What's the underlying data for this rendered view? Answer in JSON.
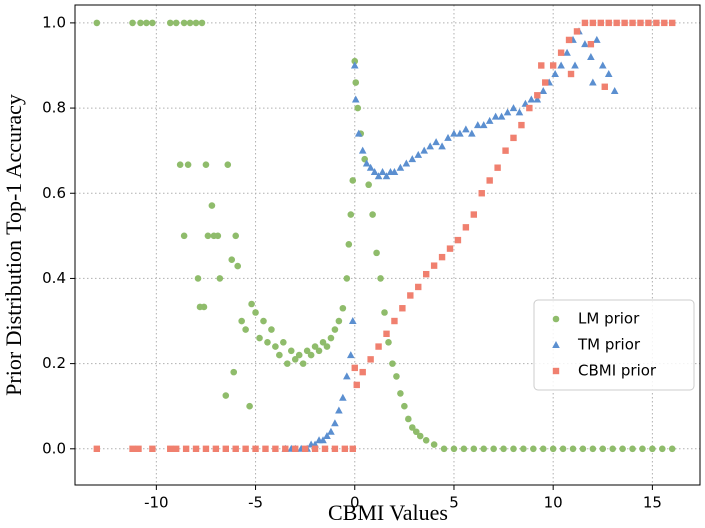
{
  "chart_data": {
    "type": "scatter",
    "xlabel": "CBMI Values",
    "ylabel": "Prior Distribution Top-1 Accuracy",
    "xlim": [
      -14.1,
      17.4
    ],
    "ylim": [
      -0.085,
      1.042
    ],
    "xticks": [
      -10,
      -5,
      0,
      5,
      10,
      15
    ],
    "yticks": [
      {
        "value": 0,
        "label": "0.0"
      },
      0.2,
      0.4,
      0.6,
      0.8,
      {
        "value": 1,
        "label": "1.0"
      }
    ],
    "grid": true,
    "legend": "lower right",
    "series": [
      {
        "name": "LM prior",
        "color": "#8fbc6b",
        "marker": "circle",
        "x": [
          -13,
          -11.2,
          -10.8,
          -10.5,
          -10.2,
          -9.3,
          -9.0,
          -8.6,
          -8.3,
          -8.0,
          -7.7,
          -8.8,
          -8.4,
          -7.5,
          -6.4,
          -7.2,
          -8.6,
          -7.4,
          -7.1,
          -6.9,
          -6.2,
          -5.9,
          -7.9,
          -7.8,
          -7.6,
          -6.0,
          -6.8,
          -6.5,
          -5.3,
          -6.1,
          -5.7,
          -5.5,
          -5.2,
          -5.0,
          -4.8,
          -4.6,
          -4.4,
          -4.2,
          -4.0,
          -3.8,
          -3.6,
          -3.4,
          -3.2,
          -3.0,
          -2.8,
          -2.6,
          -2.4,
          -2.2,
          -2.0,
          -1.8,
          -1.6,
          -1.4,
          -1.2,
          -1.0,
          -0.8,
          -0.6,
          -0.4,
          -0.3,
          -0.2,
          -0.1,
          0.0,
          0.05,
          0.15,
          0.3,
          0.5,
          0.7,
          0.9,
          1.1,
          1.3,
          1.5,
          1.7,
          1.9,
          2.1,
          2.3,
          2.5,
          2.7,
          2.9,
          3.1,
          3.3,
          3.6,
          4.0,
          4.5,
          5,
          5.5,
          6,
          6.5,
          7,
          7.5,
          8,
          8.5,
          9,
          9.5,
          10,
          10.5,
          11,
          11.5,
          12,
          12.5,
          13,
          13.5,
          14,
          14.5,
          15,
          15.5,
          16
        ],
        "values": [
          1,
          1,
          1,
          1,
          1,
          1,
          1,
          1,
          1,
          1,
          1,
          0.667,
          0.667,
          0.667,
          0.667,
          0.571,
          0.5,
          0.5,
          0.5,
          0.5,
          0.444,
          0.429,
          0.4,
          0.333,
          0.333,
          0.5,
          0.4,
          0.125,
          0.1,
          0.18,
          0.3,
          0.28,
          0.34,
          0.32,
          0.26,
          0.3,
          0.25,
          0.28,
          0.24,
          0.22,
          0.25,
          0.2,
          0.23,
          0.21,
          0.22,
          0.2,
          0.23,
          0.22,
          0.24,
          0.23,
          0.25,
          0.24,
          0.26,
          0.28,
          0.3,
          0.33,
          0.4,
          0.48,
          0.55,
          0.63,
          0.91,
          0.86,
          0.8,
          0.74,
          0.68,
          0.62,
          0.55,
          0.46,
          0.4,
          0.32,
          0.25,
          0.2,
          0.17,
          0.13,
          0.1,
          0.07,
          0.05,
          0.04,
          0.03,
          0.02,
          0.01,
          0,
          0,
          0,
          0,
          0,
          0,
          0,
          0,
          0,
          0,
          0,
          0,
          0,
          0,
          0,
          0,
          0,
          0,
          0,
          0,
          0,
          0,
          0,
          0
        ]
      },
      {
        "name": "TM prior",
        "color": "#5b8fd0",
        "marker": "triangle",
        "x": [
          -3.5,
          -3.2,
          -3,
          -2.7,
          -2.4,
          -2.2,
          -2.0,
          -1.8,
          -1.6,
          -1.4,
          -1.2,
          -1.0,
          -0.8,
          -0.6,
          -0.4,
          -0.2,
          -0.1,
          0.0,
          0.05,
          0.2,
          0.4,
          0.6,
          0.8,
          1.0,
          1.2,
          1.4,
          1.6,
          1.8,
          2.0,
          2.3,
          2.6,
          2.9,
          3.2,
          3.5,
          3.8,
          4.1,
          4.4,
          4.7,
          5.0,
          5.3,
          5.6,
          5.9,
          6.2,
          6.5,
          6.8,
          7.1,
          7.4,
          7.7,
          8.0,
          8.3,
          8.6,
          8.9,
          9.2,
          9.5,
          9.8,
          10.1,
          10.4,
          10.7,
          11.0,
          11.3,
          11.6,
          11.9,
          12.2,
          12.5,
          12.8,
          13.1,
          11.1,
          12.0
        ],
        "values": [
          0,
          0,
          0,
          0,
          0,
          0.01,
          0.01,
          0.02,
          0.02,
          0.03,
          0.04,
          0.06,
          0.09,
          0.12,
          0.17,
          0.22,
          0.3,
          0.9,
          0.82,
          0.74,
          0.7,
          0.67,
          0.66,
          0.65,
          0.64,
          0.65,
          0.64,
          0.65,
          0.65,
          0.66,
          0.67,
          0.68,
          0.69,
          0.7,
          0.71,
          0.72,
          0.71,
          0.73,
          0.74,
          0.74,
          0.75,
          0.74,
          0.76,
          0.76,
          0.77,
          0.78,
          0.78,
          0.79,
          0.8,
          0.79,
          0.81,
          0.82,
          0.82,
          0.84,
          0.86,
          0.88,
          0.9,
          0.93,
          0.96,
          0.98,
          0.95,
          0.92,
          0.96,
          0.9,
          0.88,
          0.84,
          0.9,
          0.86
        ]
      },
      {
        "name": "CBMI prior",
        "color": "#f0806f",
        "marker": "square",
        "x": [
          -13,
          -11.2,
          -10.9,
          -10.2,
          -9.3,
          -9,
          -8.5,
          -8,
          -7.5,
          -7,
          -6.5,
          -6,
          -5.5,
          -5,
          -4.5,
          -4,
          -3.5,
          -3,
          -2.5,
          -2,
          -1.5,
          -1,
          -0.5,
          -0.1,
          0,
          0.1,
          0.4,
          0.8,
          1.2,
          1.6,
          2.0,
          2.4,
          2.8,
          3.2,
          3.6,
          4.0,
          4.4,
          4.8,
          5.2,
          5.6,
          6.0,
          6.4,
          6.8,
          7.2,
          7.6,
          8.0,
          8.4,
          8.8,
          9.2,
          9.6,
          10.0,
          10.4,
          10.8,
          11.2,
          11.6,
          12,
          12.4,
          12.8,
          13.2,
          13.6,
          14,
          14.4,
          14.8,
          15.2,
          15.6,
          16,
          12.6,
          11.9,
          10.9,
          9.4
        ],
        "values": [
          0,
          0,
          0,
          0,
          0,
          0,
          0,
          0,
          0,
          0,
          0,
          0,
          0,
          0,
          0,
          0,
          0,
          0,
          0,
          0,
          0,
          0,
          0,
          0,
          0.19,
          0.15,
          0.18,
          0.21,
          0.24,
          0.27,
          0.3,
          0.33,
          0.36,
          0.38,
          0.41,
          0.43,
          0.45,
          0.47,
          0.49,
          0.52,
          0.55,
          0.6,
          0.63,
          0.66,
          0.7,
          0.73,
          0.76,
          0.8,
          0.83,
          0.86,
          0.9,
          0.93,
          0.96,
          0.98,
          1,
          1,
          1,
          1,
          1,
          1,
          1,
          1,
          1,
          1,
          1,
          1,
          0.85,
          0.95,
          0.88,
          0.9
        ]
      }
    ]
  }
}
